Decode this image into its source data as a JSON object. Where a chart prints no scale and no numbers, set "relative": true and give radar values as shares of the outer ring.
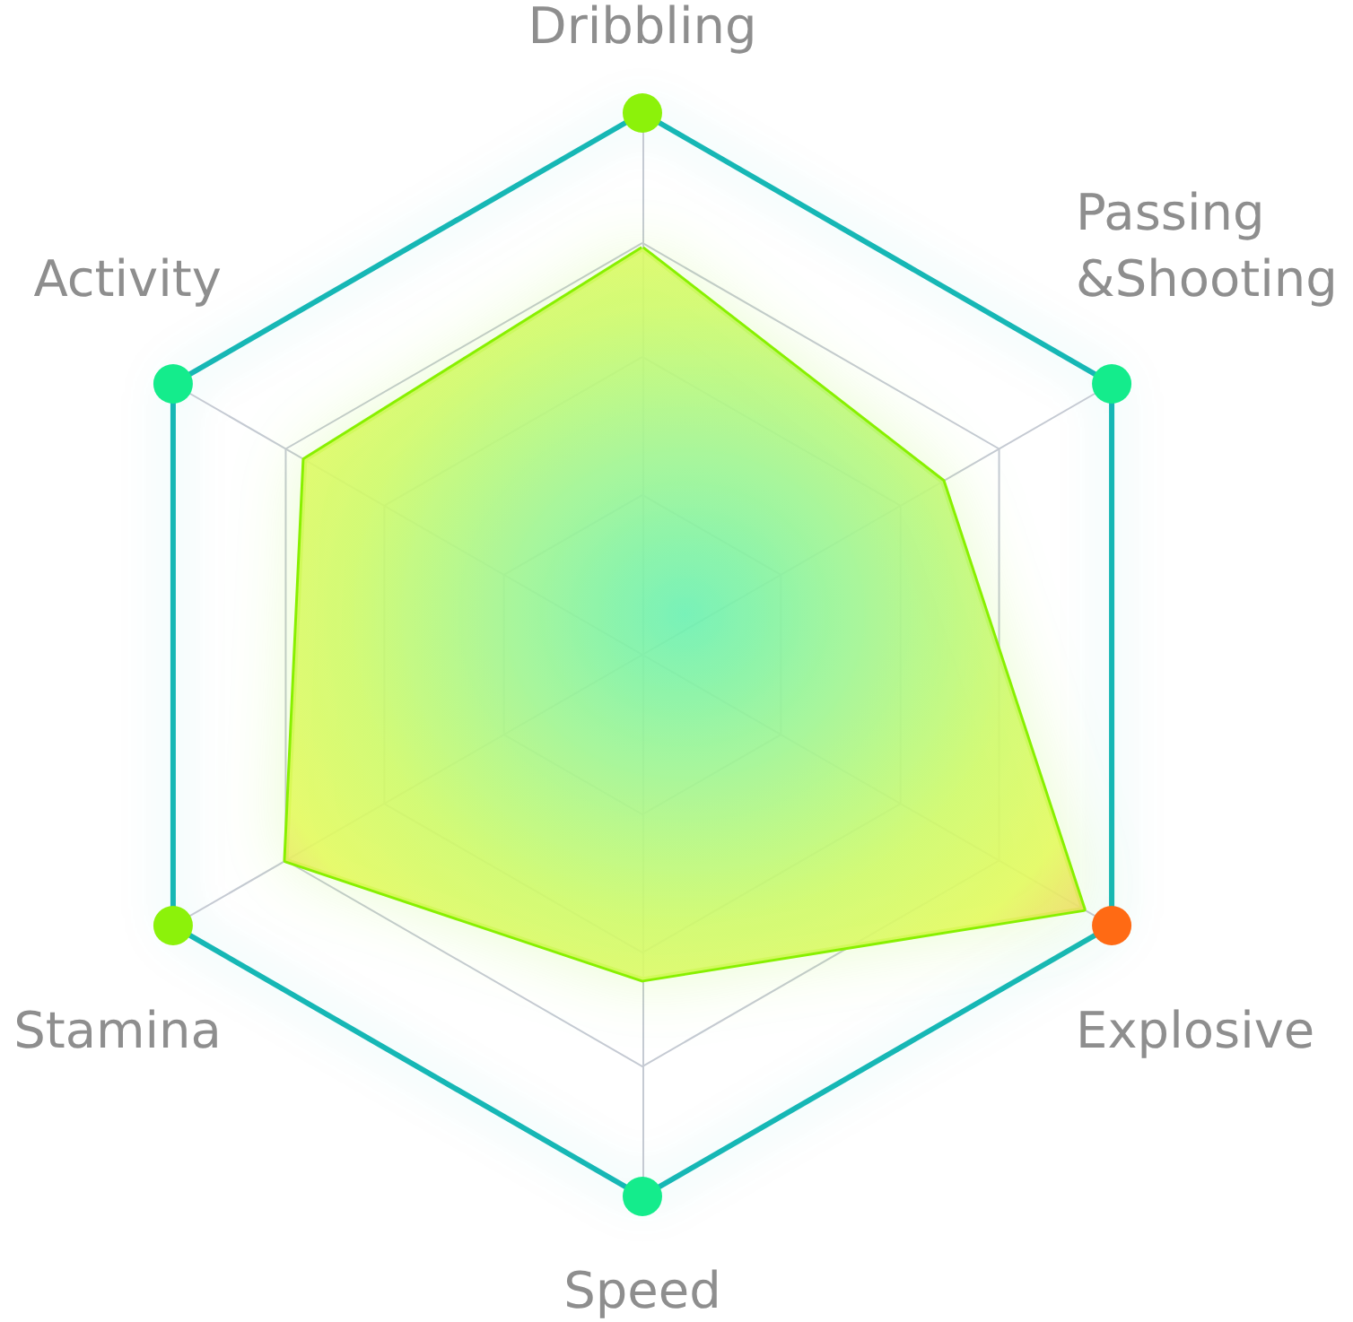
{
  "chart_data": {
    "type": "radar",
    "relative": true,
    "grid": true,
    "categories": [
      "Dribbling",
      "Passing &Shooting",
      "Explosive",
      "Speed",
      "Stamina",
      "Activity"
    ],
    "series": [
      {
        "color": "#88f000",
        "values": [
          0.75,
          0.64,
          0.94,
          0.6,
          0.76,
          0.72
        ]
      }
    ]
  }
}
